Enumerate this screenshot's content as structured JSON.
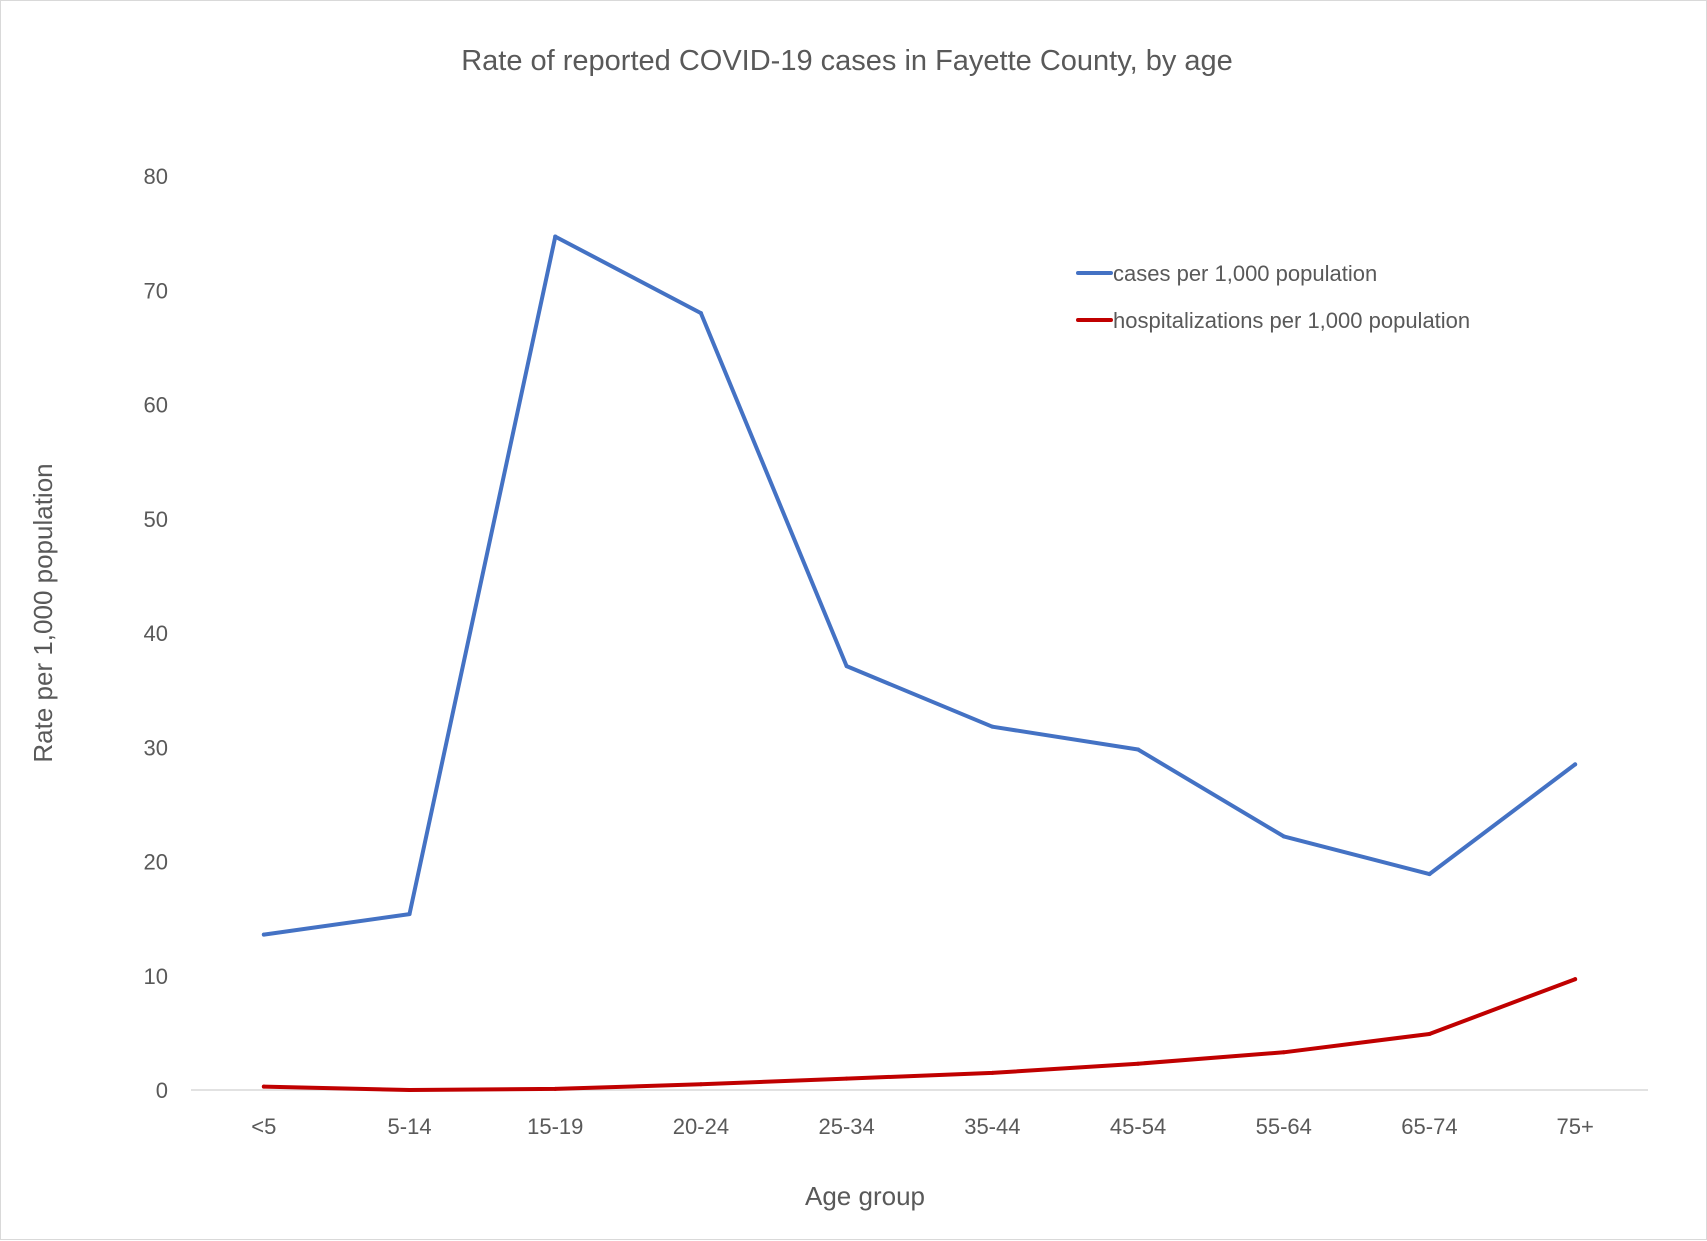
{
  "chart_data": {
    "type": "line",
    "title": "Rate of reported COVID-19 cases in Fayette County, by age",
    "xlabel": "Age group",
    "ylabel": "Rate per 1,000 population",
    "categories": [
      "<5",
      "5-14",
      "15-19",
      "20-24",
      "25-34",
      "35-44",
      "45-54",
      "55-64",
      "65-74",
      "75+"
    ],
    "series": [
      {
        "name": "cases per 1,000 population",
        "color": "#4472c4",
        "values": [
          13.6,
          15.4,
          74.7,
          68.0,
          37.1,
          31.8,
          29.8,
          22.2,
          18.9,
          28.5
        ]
      },
      {
        "name": "hospitalizations per 1,000 population",
        "color": "#c00000",
        "values": [
          0.3,
          0.0,
          0.1,
          0.5,
          1.0,
          1.5,
          2.3,
          3.3,
          4.9,
          9.7
        ]
      }
    ],
    "ylim": [
      0,
      80
    ],
    "yticks": [
      0,
      10,
      20,
      30,
      40,
      50,
      60,
      70,
      80
    ],
    "grid": false,
    "legend_position": "top-right"
  }
}
